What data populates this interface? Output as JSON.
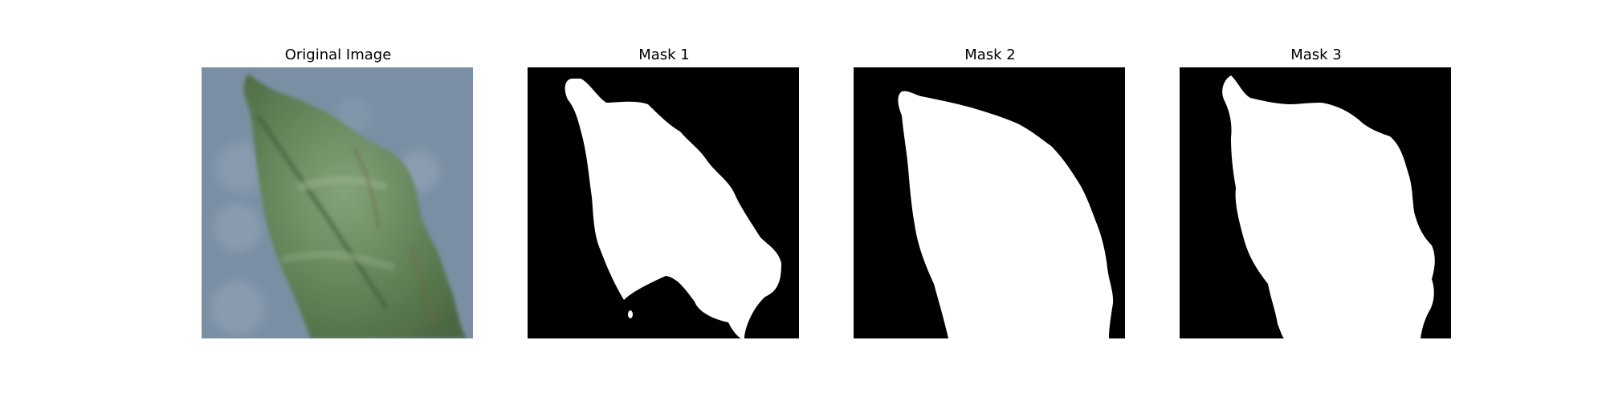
{
  "figure": {
    "panels": [
      {
        "title": "Original Image",
        "kind": "photo"
      },
      {
        "title": "Mask 1",
        "kind": "mask"
      },
      {
        "title": "Mask 2",
        "kind": "mask"
      },
      {
        "title": "Mask 3",
        "kind": "mask"
      }
    ]
  },
  "colors": {
    "mask_background": "#000000",
    "mask_foreground": "#ffffff",
    "photo_background": "#7a8ea3",
    "leaf_dark": "#4f6b44",
    "leaf_light": "#7f9e74"
  }
}
